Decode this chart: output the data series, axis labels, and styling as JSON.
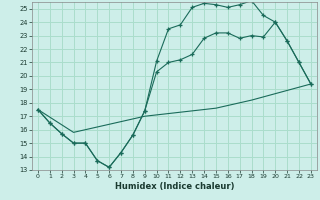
{
  "xlabel": "Humidex (Indice chaleur)",
  "bg_color": "#cdeee9",
  "grid_color": "#aaddcc",
  "line_color": "#1a6b5a",
  "xlim": [
    -0.5,
    23.5
  ],
  "ylim": [
    13,
    25.5
  ],
  "yticks": [
    13,
    14,
    15,
    16,
    17,
    18,
    19,
    20,
    21,
    22,
    23,
    24,
    25
  ],
  "xticks": [
    0,
    1,
    2,
    3,
    4,
    5,
    6,
    7,
    8,
    9,
    10,
    11,
    12,
    13,
    14,
    15,
    16,
    17,
    18,
    19,
    20,
    21,
    22,
    23
  ],
  "line1_x": [
    0,
    1,
    2,
    3,
    4,
    5,
    6,
    7,
    8,
    9,
    10,
    11,
    12,
    13,
    14,
    15,
    16,
    17,
    18,
    19,
    20,
    21,
    22,
    23
  ],
  "line1_y": [
    17.5,
    16.5,
    15.7,
    15.0,
    15.0,
    13.7,
    13.2,
    14.3,
    15.6,
    17.4,
    21.1,
    23.5,
    23.8,
    25.1,
    25.4,
    25.3,
    25.1,
    25.3,
    25.6,
    24.5,
    24.0,
    22.6,
    21.0,
    19.4
  ],
  "line2_x": [
    0,
    1,
    2,
    3,
    4,
    5,
    6,
    7,
    8,
    9,
    10,
    11,
    12,
    13,
    14,
    15,
    16,
    17,
    18,
    19,
    20,
    21,
    22,
    23
  ],
  "line2_y": [
    17.5,
    16.5,
    15.7,
    15.0,
    15.0,
    13.7,
    13.2,
    14.3,
    15.6,
    17.4,
    20.3,
    21.0,
    21.2,
    21.6,
    22.8,
    23.2,
    23.2,
    22.8,
    23.0,
    22.9,
    24.0,
    22.6,
    21.0,
    19.4
  ],
  "line3_x": [
    0,
    3,
    9,
    15,
    18,
    23
  ],
  "line3_y": [
    17.5,
    15.8,
    17.0,
    17.6,
    18.2,
    19.4
  ]
}
